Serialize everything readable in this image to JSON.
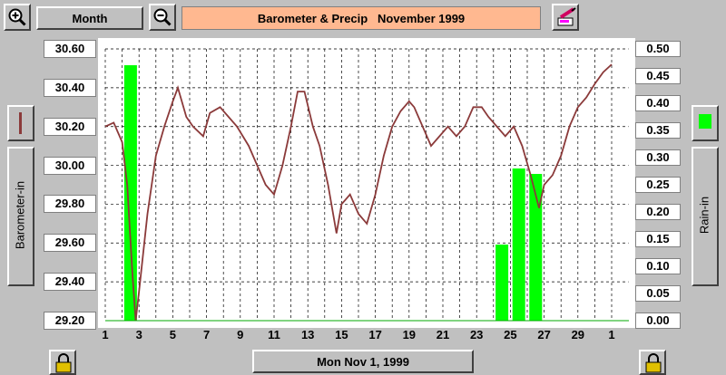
{
  "toolbar": {
    "zoom_in_icon": "magnifier-plus-icon",
    "period_label": "Month",
    "zoom_out_icon": "magnifier-minus-icon",
    "title": "Barometer & Precip   November 1999",
    "print_icon": "printer-pen-icon"
  },
  "left_panel": {
    "series_swatch_color": "#8b3a3a",
    "axis_button_label": "Barometer-in"
  },
  "right_panel": {
    "series_swatch_color": "#00ff00",
    "axis_button_label": "Rain-in"
  },
  "bottom": {
    "date_label": "Mon Nov 1, 1999",
    "lock_icon": "padlock-icon"
  },
  "chart_data": {
    "type": "line",
    "left_axis": {
      "label": "Barometer-in",
      "min": 29.2,
      "max": 30.6,
      "ticks": [
        "30.60",
        "30.40",
        "30.20",
        "30.00",
        "29.80",
        "29.60",
        "29.40",
        "29.20"
      ]
    },
    "right_axis": {
      "label": "Rain-in",
      "min": 0,
      "max": 0.5,
      "ticks": [
        "0.50",
        "0.45",
        "0.40",
        "0.35",
        "0.30",
        "0.25",
        "0.20",
        "0.15",
        "0.10",
        "0.05",
        "0.00"
      ]
    },
    "x_ticks": [
      "1",
      "3",
      "5",
      "7",
      "9",
      "11",
      "13",
      "15",
      "17",
      "19",
      "21",
      "23",
      "25",
      "27",
      "29",
      "1"
    ],
    "rain": {
      "color": "#00ff00",
      "days": [
        2.5,
        24.5,
        25.5,
        26.5
      ],
      "values": [
        0.47,
        0.14,
        0.28,
        0.27
      ]
    },
    "barometer": {
      "color": "#8b3a3a",
      "x": [
        1,
        1.5,
        2,
        2.3,
        2.6,
        2.8,
        3,
        3.5,
        4,
        4.5,
        5,
        5.3,
        5.8,
        6.2,
        6.8,
        7.2,
        7.8,
        8.3,
        8.8,
        9.5,
        10,
        10.5,
        11,
        11.5,
        12,
        12.4,
        12.8,
        13.3,
        13.7,
        14.2,
        14.7,
        15,
        15.5,
        16,
        16.5,
        17,
        17.5,
        18,
        18.5,
        19,
        19.3,
        19.8,
        20.3,
        20.8,
        21.3,
        21.8,
        22.3,
        22.8,
        23.3,
        23.7,
        24.2,
        24.7,
        25.2,
        25.7,
        26.2,
        26.7,
        27,
        27.5,
        28,
        28.5,
        29,
        29.5,
        30,
        30.5,
        31
      ],
      "values": [
        30.2,
        30.22,
        30.12,
        29.9,
        29.45,
        29.2,
        29.35,
        29.75,
        30.05,
        30.2,
        30.33,
        30.4,
        30.25,
        30.2,
        30.15,
        30.27,
        30.3,
        30.25,
        30.2,
        30.1,
        30.0,
        29.9,
        29.85,
        30.0,
        30.2,
        30.38,
        30.38,
        30.2,
        30.1,
        29.9,
        29.65,
        29.8,
        29.85,
        29.75,
        29.7,
        29.85,
        30.05,
        30.2,
        30.28,
        30.33,
        30.3,
        30.2,
        30.1,
        30.15,
        30.2,
        30.15,
        30.2,
        30.3,
        30.3,
        30.25,
        30.2,
        30.15,
        30.2,
        30.1,
        29.95,
        29.78,
        29.9,
        29.95,
        30.05,
        30.2,
        30.3,
        30.35,
        30.42,
        30.48,
        30.52
      ]
    }
  }
}
